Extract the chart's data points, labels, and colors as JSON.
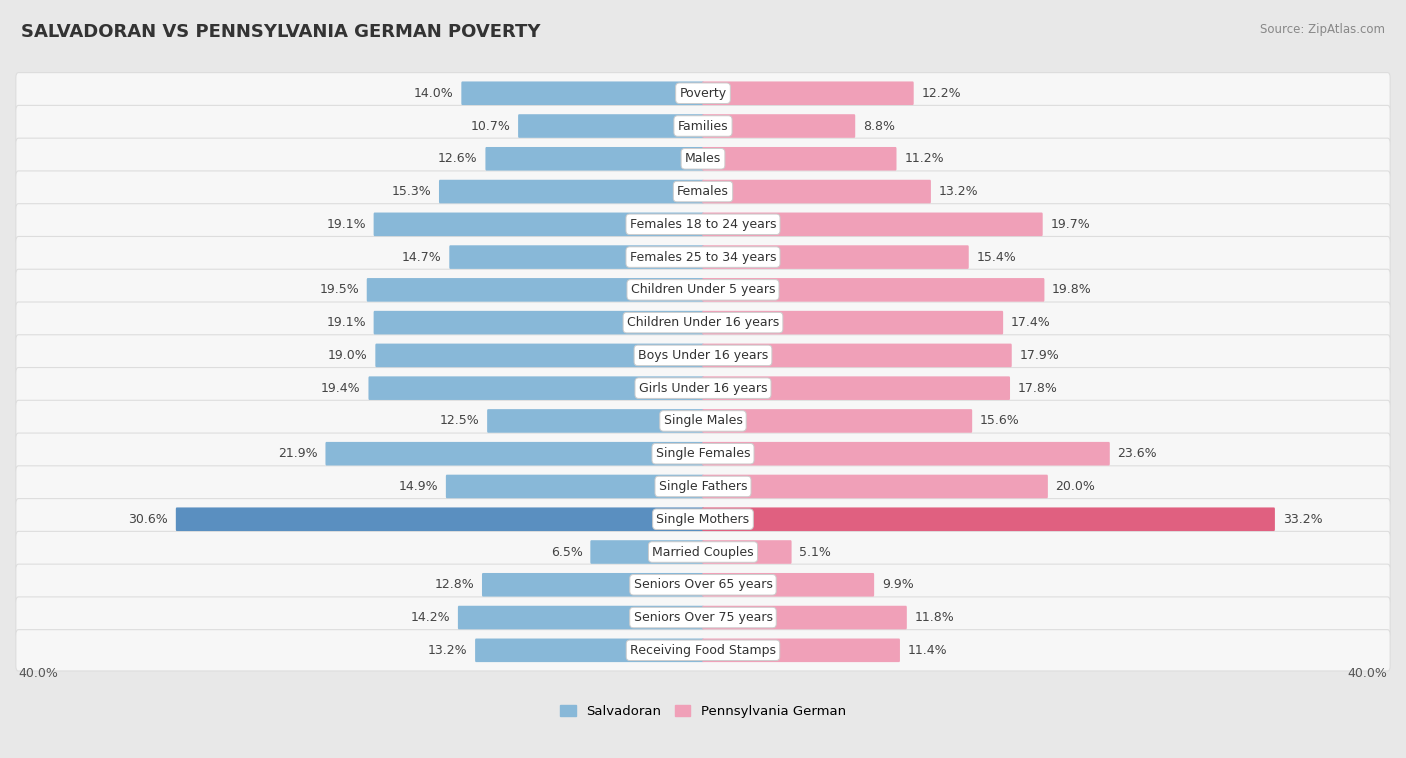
{
  "title": "SALVADORAN VS PENNSYLVANIA GERMAN POVERTY",
  "source": "Source: ZipAtlas.com",
  "categories": [
    "Poverty",
    "Families",
    "Males",
    "Females",
    "Females 18 to 24 years",
    "Females 25 to 34 years",
    "Children Under 5 years",
    "Children Under 16 years",
    "Boys Under 16 years",
    "Girls Under 16 years",
    "Single Males",
    "Single Females",
    "Single Fathers",
    "Single Mothers",
    "Married Couples",
    "Seniors Over 65 years",
    "Seniors Over 75 years",
    "Receiving Food Stamps"
  ],
  "salvadoran": [
    14.0,
    10.7,
    12.6,
    15.3,
    19.1,
    14.7,
    19.5,
    19.1,
    19.0,
    19.4,
    12.5,
    21.9,
    14.9,
    30.6,
    6.5,
    12.8,
    14.2,
    13.2
  ],
  "pennsylvania_german": [
    12.2,
    8.8,
    11.2,
    13.2,
    19.7,
    15.4,
    19.8,
    17.4,
    17.9,
    17.8,
    15.6,
    23.6,
    20.0,
    33.2,
    5.1,
    9.9,
    11.8,
    11.4
  ],
  "salvadoran_color": "#88b8d8",
  "pennsylvania_german_color": "#f0a0b8",
  "single_mothers_salvadoran_color": "#5a8fc0",
  "single_mothers_pg_color": "#e06080",
  "background_color": "#e8e8e8",
  "row_bg_color": "#f7f7f7",
  "row_alt_bg_color": "#eeeeee",
  "axis_limit": 40.0,
  "bar_height": 0.62,
  "label_fontsize": 9.0,
  "value_fontsize": 9.0,
  "title_fontsize": 13,
  "source_fontsize": 8.5
}
